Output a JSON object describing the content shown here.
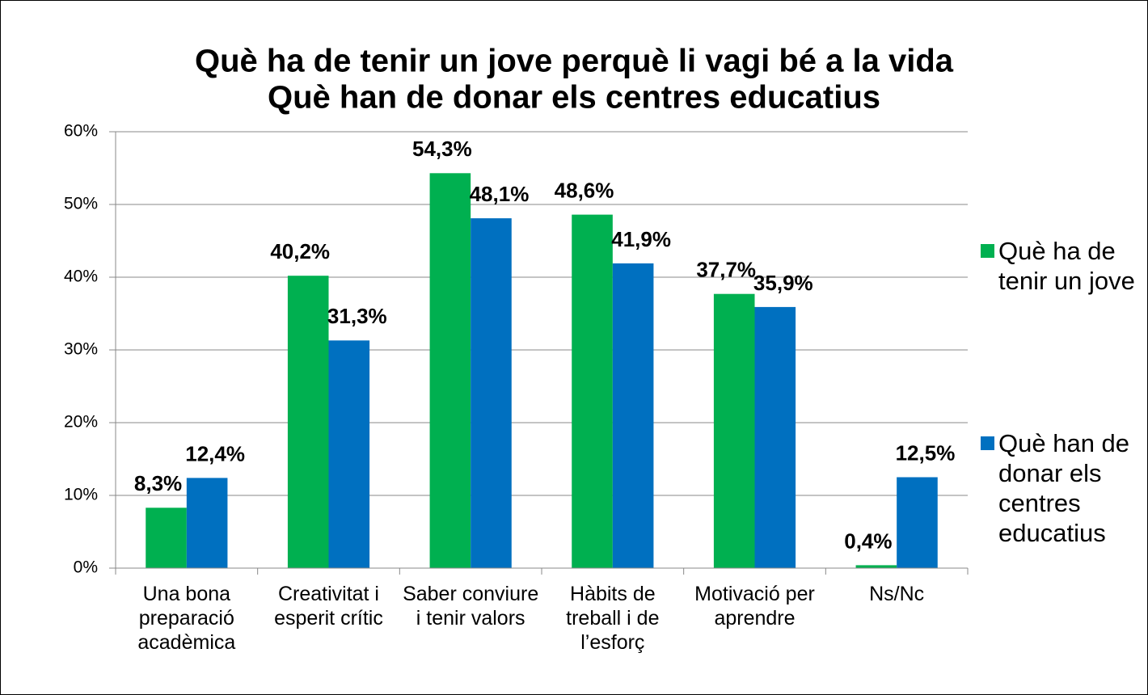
{
  "chart_data": {
    "type": "bar",
    "title": "Què ha de tenir un jove perquè li vagi bé a la vida",
    "subtitle": "Què han de donar els centres educatius",
    "categories": [
      "Una bona preparació acadèmica",
      "Creativitat i esperit crític",
      "Saber conviure i tenir valors",
      "Hàbits de treball i de l’esforç",
      "Motivació per aprendre",
      "Ns/Nc"
    ],
    "series": [
      {
        "name": "Què ha de tenir un jove",
        "color": "#00b050",
        "values": [
          8.3,
          40.2,
          54.3,
          48.6,
          37.7,
          0.4
        ],
        "value_labels": [
          "8,3%",
          "40,2%",
          "54,3%",
          "48,6%",
          "37,7%",
          "0,4%"
        ]
      },
      {
        "name": "Què han de donar els centres educatius",
        "color": "#0070c0",
        "values": [
          12.4,
          31.3,
          48.1,
          41.9,
          35.9,
          12.5
        ],
        "value_labels": [
          "12,4%",
          "31,3%",
          "48,1%",
          "41,9%",
          "35,9%",
          "12,5%"
        ]
      }
    ],
    "ylim": [
      0,
      60
    ],
    "yticks": [
      {
        "value": 0,
        "label": "0%"
      },
      {
        "value": 10,
        "label": "10%"
      },
      {
        "value": 20,
        "label": "20%"
      },
      {
        "value": 30,
        "label": "30%"
      },
      {
        "value": 40,
        "label": "40%"
      },
      {
        "value": 50,
        "label": "50%"
      },
      {
        "value": 60,
        "label": "60%"
      }
    ],
    "grid": true,
    "legend": "right"
  }
}
